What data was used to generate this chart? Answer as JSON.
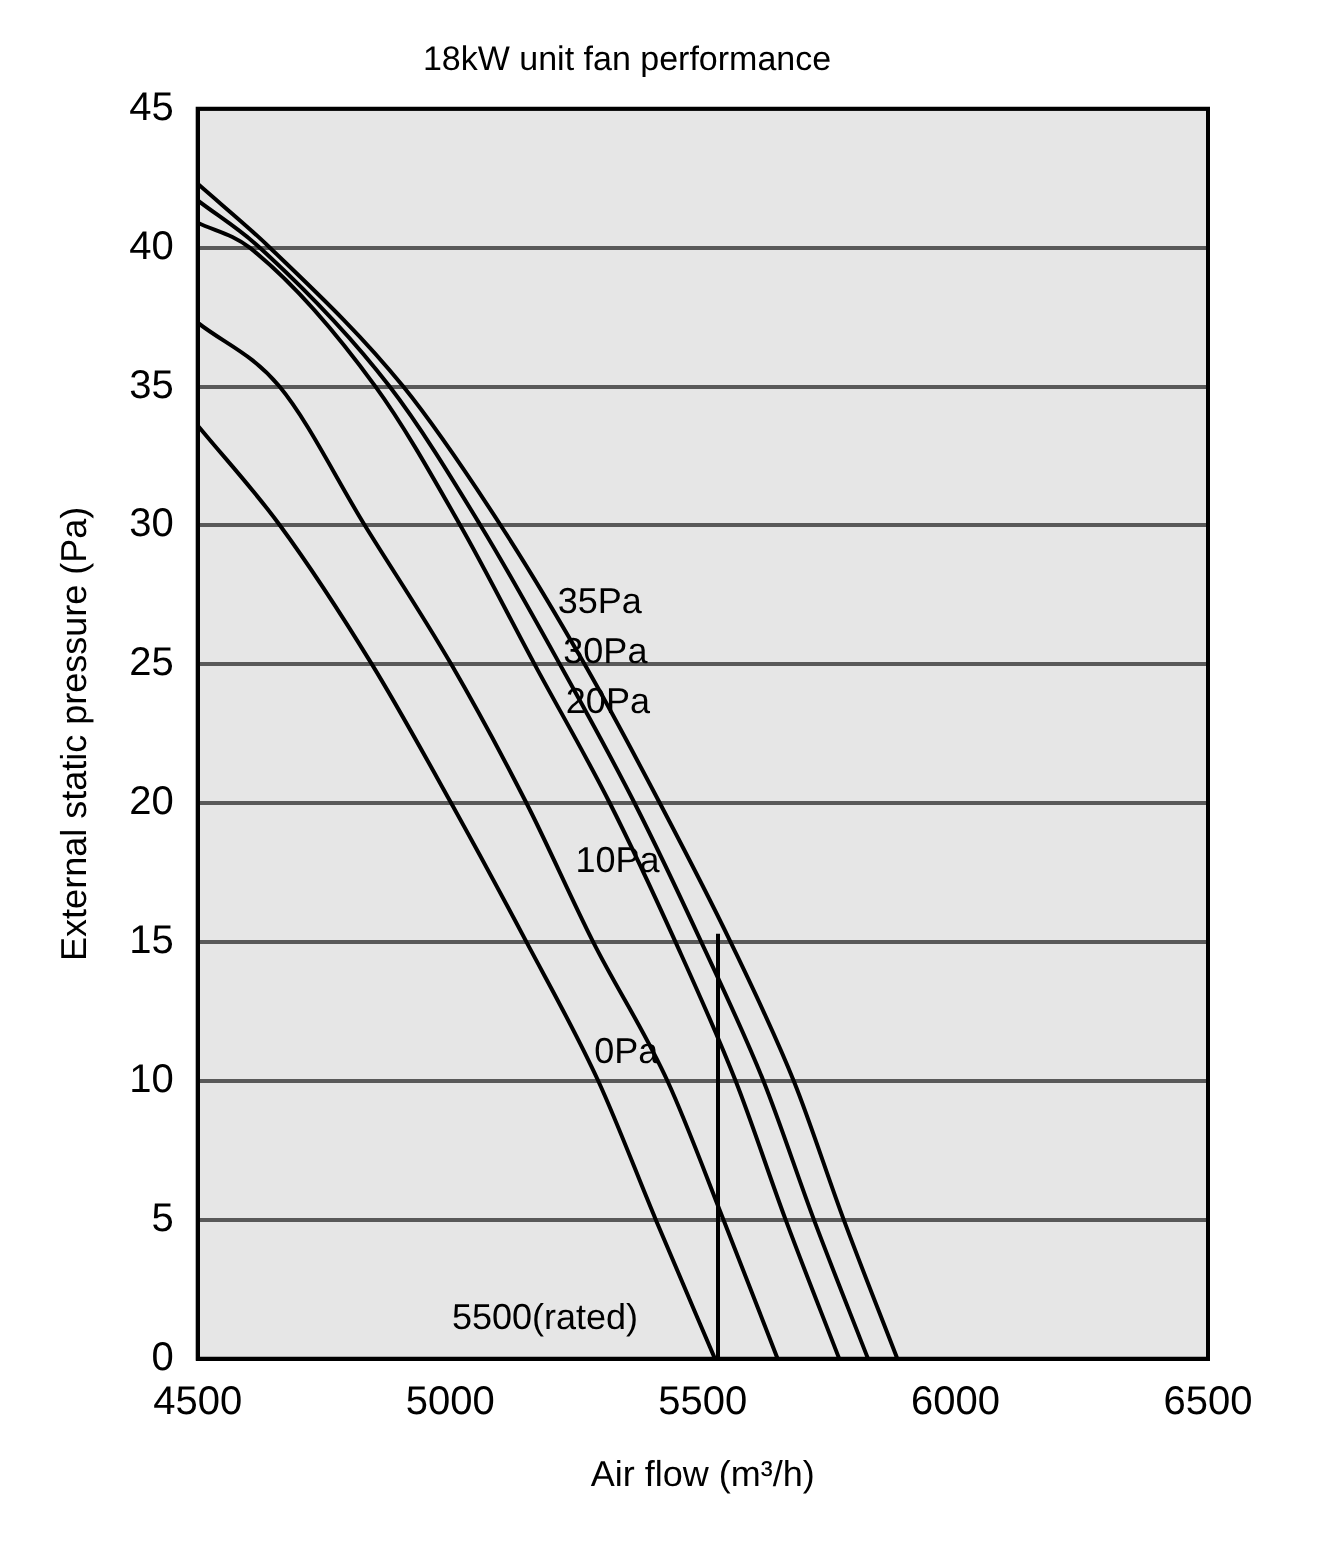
{
  "chart_data": {
    "type": "line",
    "title": "18kW unit fan performance",
    "xlabel": "Air flow (m³/h)",
    "ylabel": "External static pressure (Pa)",
    "xlim": [
      4500,
      6500
    ],
    "xticks": [
      4500,
      5000,
      5500,
      6000,
      6500
    ],
    "ylim": [
      0,
      45
    ],
    "yticks": [
      0,
      5,
      10,
      15,
      20,
      25,
      30,
      35,
      40,
      45
    ],
    "grid": "y",
    "marker": "none",
    "line_style": "solid",
    "legend": false,
    "series": [
      {
        "color": "#000000",
        "x": [
          4500,
          4643,
          4907,
          5100,
          5266,
          5415,
          5555,
          5680,
          5779,
          5885
        ],
        "values": [
          42.3,
          40,
          35,
          30,
          25,
          20,
          15,
          10,
          5,
          0
        ]
      },
      {
        "color": "#000000",
        "x": [
          4500,
          4623,
          4880,
          5060,
          5217,
          5365,
          5497,
          5620,
          5720,
          5827
        ],
        "values": [
          41.7,
          40,
          35,
          30,
          25,
          20,
          15,
          10,
          5,
          0
        ]
      },
      {
        "color": "#000000",
        "x": [
          4500,
          4603,
          4852,
          5020,
          5167,
          5316,
          5446,
          5565,
          5664,
          5770
        ],
        "values": [
          40.9,
          40,
          35,
          30,
          25,
          20,
          15,
          10,
          5,
          0
        ]
      },
      {
        "color": "#000000",
        "x": [
          4500,
          4662,
          4831,
          5002,
          5151,
          5283,
          5430,
          5541,
          5648
        ],
        "values": [
          37.3,
          35,
          30,
          25,
          20,
          15,
          10,
          5,
          0
        ]
      },
      {
        "color": "#000000",
        "x": [
          4500,
          4663,
          4845,
          5002,
          5151,
          5293,
          5407,
          5524
        ],
        "values": [
          33.6,
          30,
          25,
          20,
          15,
          10,
          5,
          0
        ]
      },
      {
        "color": "#000000",
        "x": [
          5530,
          5530
        ],
        "values": [
          0,
          15.3
        ]
      }
    ],
    "annotations": [
      {
        "text": "35Pa",
        "x": 5193,
        "y": 27.2
      },
      {
        "text": "30Pa",
        "x": 5204,
        "y": 25.4
      },
      {
        "text": "20Pa",
        "x": 5209,
        "y": 23.6
      },
      {
        "text": "10Pa",
        "x": 5228,
        "y": 17.9
      },
      {
        "text": "0Pa",
        "x": 5265,
        "y": 11.0
      },
      "5500(rated)"
    ]
  }
}
